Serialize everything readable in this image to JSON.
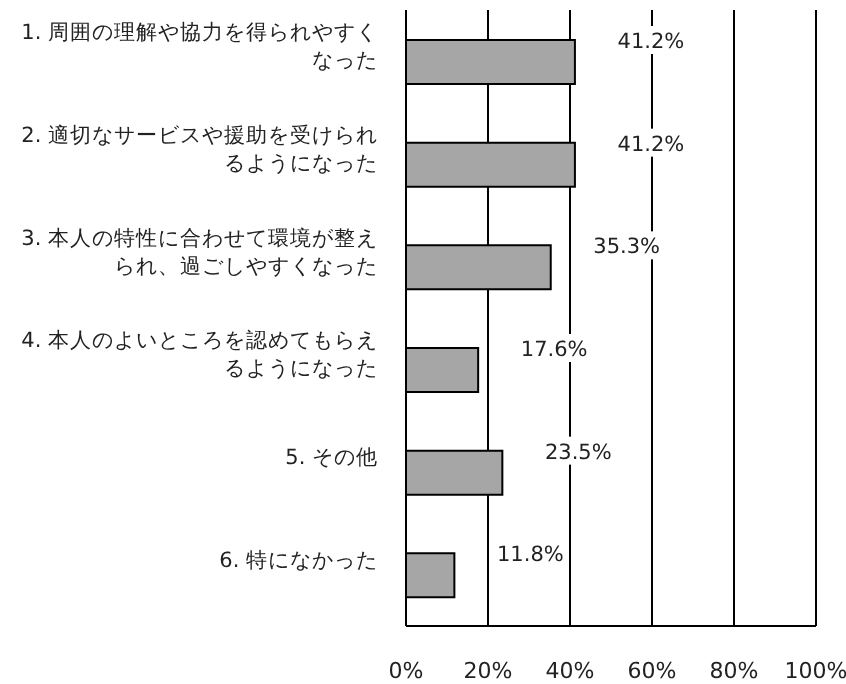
{
  "chart_data": {
    "type": "bar",
    "orientation": "horizontal",
    "categories": [
      "1. 周囲の理解や協力を得られやすくなった",
      "2. 適切なサービスや援助を受けられるようになった",
      "3. 本人の特性に合わせて環境が整えられ、過ごしやすくなった",
      "4. 本人のよいところを認めてもらえるようになった",
      "5. その他",
      "6. 特になかった"
    ],
    "values": [
      41.2,
      41.2,
      35.3,
      17.6,
      23.5,
      11.8
    ],
    "value_labels": [
      "41.2%",
      "41.2%",
      "35.3%",
      "17.6%",
      "23.5%",
      "11.8%"
    ],
    "color": "#a6a6a6",
    "xlim": [
      0,
      100
    ],
    "xticks": [
      {
        "value": 0,
        "label": "0%"
      },
      {
        "value": 20,
        "label": "20%"
      },
      {
        "value": 40,
        "label": "40%"
      },
      {
        "value": 60,
        "label": "60%"
      },
      {
        "value": 80,
        "label": "80%"
      },
      {
        "value": 100,
        "label": "100%"
      }
    ],
    "grid": "x",
    "legend": false
  }
}
